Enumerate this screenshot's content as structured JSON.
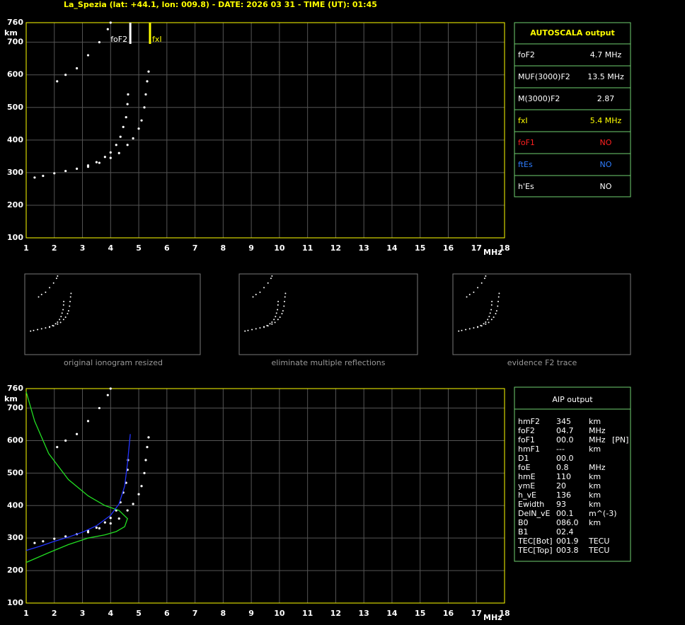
{
  "header": {
    "title": "La_Spezia (lat: +44.1, lon: 009.8) - DATE: 2026 03 31 - TIME (UT): 01:45"
  },
  "top_ionogram": {
    "y_label": "km",
    "x_label": "MHz",
    "xlim": [
      1,
      18
    ],
    "ylim": [
      100,
      760
    ],
    "xticks": [
      1,
      2,
      3,
      4,
      5,
      6,
      7,
      8,
      9,
      10,
      11,
      12,
      13,
      14,
      15,
      16,
      17,
      18
    ],
    "yticks": [
      100,
      200,
      300,
      400,
      500,
      600,
      700,
      760
    ],
    "o_trace": {
      "f": [
        1.3,
        1.6,
        2.0,
        2.4,
        2.8,
        3.2,
        3.5,
        3.8,
        4.0,
        4.2,
        4.35,
        4.45,
        4.55,
        4.6,
        4.62
      ],
      "h": [
        285,
        290,
        298,
        305,
        312,
        322,
        332,
        348,
        362,
        385,
        410,
        440,
        470,
        510,
        540
      ]
    },
    "x_trace": {
      "f": [
        3.2,
        3.6,
        4.0,
        4.3,
        4.6,
        4.8,
        5.0,
        5.1,
        5.2,
        5.25,
        5.3,
        5.35
      ],
      "h": [
        318,
        330,
        345,
        360,
        385,
        405,
        435,
        460,
        500,
        540,
        580,
        610
      ]
    },
    "m_trace": {
      "f": [
        2.1,
        2.4,
        2.8,
        3.2,
        3.6,
        3.9,
        4.0
      ],
      "h": [
        580,
        600,
        620,
        660,
        700,
        740,
        760
      ]
    },
    "markers": [
      {
        "label": "foF2",
        "f": 4.7,
        "color": "#ffffff"
      },
      {
        "label": "fxI",
        "f": 5.4,
        "color": "#ffff00"
      }
    ]
  },
  "autoscala": {
    "title": "AUTOSCALA output",
    "rows": [
      {
        "name": "foF2",
        "value": "4.7 MHz",
        "color": "#ffffff"
      },
      {
        "name": "MUF(3000)F2",
        "value": "13.5 MHz",
        "color": "#ffffff"
      },
      {
        "name": "M(3000)F2",
        "value": "2.87",
        "color": "#ffffff"
      },
      {
        "name": "fxI",
        "value": "5.4 MHz",
        "color": "#ffff00"
      },
      {
        "name": "foF1",
        "value": "NO",
        "color": "#ff2020"
      },
      {
        "name": "ftEs",
        "value": "NO",
        "color": "#2e7dff"
      },
      {
        "name": "h'Es",
        "value": "NO",
        "color": "#ffffff"
      }
    ]
  },
  "thumbnails": [
    "original ionogram resized",
    "eliminate multiple reflections",
    "evidence F2 trace"
  ],
  "bottom_ionogram": {
    "y_label": "km",
    "x_label": "MHz",
    "xlim": [
      1,
      18
    ],
    "ylim": [
      100,
      760
    ],
    "xticks": [
      1,
      2,
      3,
      4,
      5,
      6,
      7,
      8,
      9,
      10,
      11,
      12,
      13,
      14,
      15,
      16,
      17,
      18
    ],
    "yticks": [
      100,
      200,
      300,
      400,
      500,
      600,
      700,
      760
    ],
    "o_trace": {
      "f": [
        1.3,
        1.6,
        2.0,
        2.4,
        2.8,
        3.2,
        3.5,
        3.8,
        4.0,
        4.2,
        4.35,
        4.45,
        4.55,
        4.6,
        4.62
      ],
      "h": [
        285,
        290,
        298,
        305,
        312,
        322,
        332,
        348,
        362,
        385,
        410,
        440,
        470,
        510,
        540
      ]
    },
    "x_trace": {
      "f": [
        3.2,
        3.6,
        4.0,
        4.3,
        4.6,
        4.8,
        5.0,
        5.1,
        5.2,
        5.25,
        5.3,
        5.35
      ],
      "h": [
        318,
        330,
        345,
        360,
        385,
        405,
        435,
        460,
        500,
        540,
        580,
        610
      ]
    },
    "m_trace": {
      "f": [
        2.1,
        2.4,
        2.8,
        3.2,
        3.6,
        3.9,
        4.0
      ],
      "h": [
        580,
        600,
        620,
        660,
        700,
        740,
        760
      ]
    },
    "fit_trace": {
      "f": [
        1.0,
        1.5,
        2.0,
        2.5,
        3.0,
        3.5,
        4.0,
        4.3,
        4.5,
        4.6,
        4.7
      ],
      "h": [
        262,
        275,
        290,
        303,
        318,
        338,
        370,
        405,
        460,
        530,
        620
      ]
    },
    "profile": {
      "f": [
        1.0,
        1.3,
        1.8,
        2.5,
        3.2,
        3.8,
        4.3,
        4.6,
        4.5,
        4.2,
        3.8,
        3.2,
        2.5,
        1.8,
        1.0
      ],
      "h": [
        750,
        660,
        560,
        480,
        430,
        400,
        385,
        360,
        335,
        320,
        310,
        300,
        280,
        255,
        225
      ]
    }
  },
  "aip": {
    "title": "AIP output",
    "rows": [
      [
        "hmF2",
        "345",
        "km"
      ],
      [
        "foF2",
        "04.7",
        "MHz"
      ],
      [
        "foF1",
        "00.0",
        "MHz",
        "[PN]"
      ],
      [
        "hmF1",
        "---",
        "km"
      ],
      [
        "D1",
        "00.0"
      ],
      [
        "foE",
        "0.8",
        "MHz"
      ],
      [
        "hmE",
        "110",
        "km"
      ],
      [
        "ymE",
        "20",
        "km"
      ],
      [
        "h_vE",
        "136",
        "km"
      ],
      [
        "Ewidth",
        "93",
        "km"
      ],
      [
        "DelN_vE",
        "00.1",
        "m^(-3)"
      ],
      [
        "B0",
        "086.0",
        "km"
      ],
      [
        "B1",
        "02.4"
      ],
      [
        "TEC[Bot]",
        "001.9",
        "TECU"
      ],
      [
        "TEC[Top]",
        "003.8",
        "TECU"
      ]
    ]
  }
}
